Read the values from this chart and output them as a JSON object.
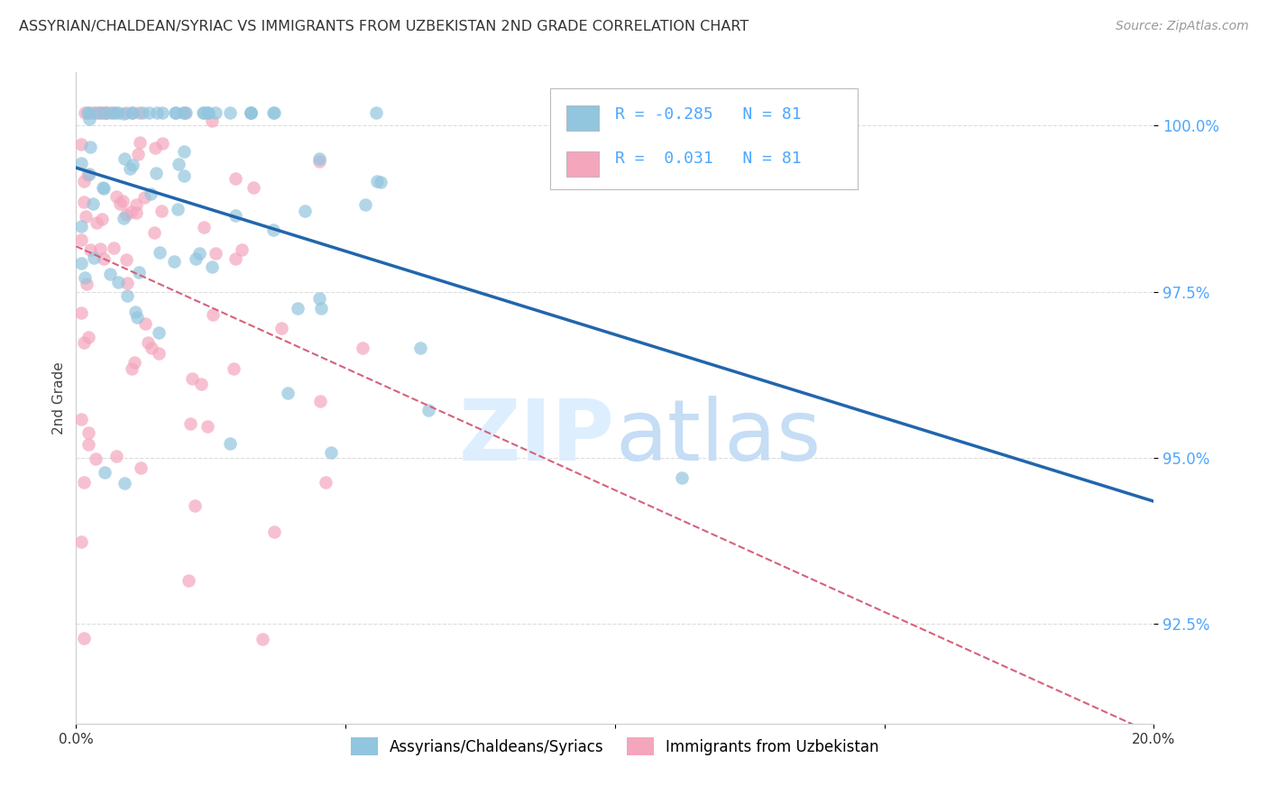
{
  "title": "ASSYRIAN/CHALDEAN/SYRIAC VS IMMIGRANTS FROM UZBEKISTAN 2ND GRADE CORRELATION CHART",
  "source": "Source: ZipAtlas.com",
  "ylabel": "2nd Grade",
  "ytick_labels": [
    "92.5%",
    "95.0%",
    "97.5%",
    "100.0%"
  ],
  "ytick_values": [
    0.925,
    0.95,
    0.975,
    1.0
  ],
  "xlim": [
    0.0,
    0.2
  ],
  "ylim": [
    0.91,
    1.008
  ],
  "r_blue": -0.285,
  "r_pink": 0.031,
  "n_blue": 81,
  "n_pink": 81,
  "legend_label_blue": "Assyrians/Chaldeans/Syriacs",
  "legend_label_pink": "Immigrants from Uzbekistan",
  "blue_color": "#92c5de",
  "pink_color": "#f4a6bd",
  "blue_line_color": "#2166ac",
  "pink_line_color": "#d6617b",
  "background_color": "#ffffff",
  "grid_color": "#dddddd",
  "title_color": "#333333",
  "source_color": "#999999",
  "ytick_color": "#4da6ff",
  "text_color_blue": "#4da6ff"
}
